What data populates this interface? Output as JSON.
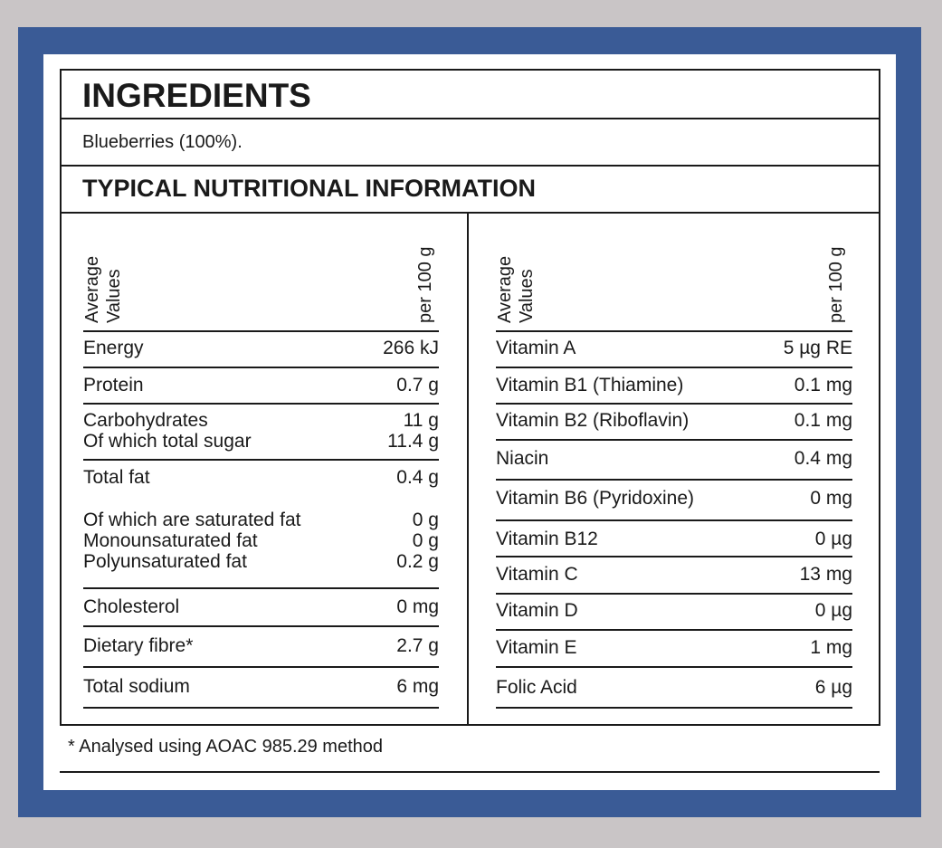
{
  "ingredients": {
    "title": "INGREDIENTS",
    "text": "Blueberries (100%)."
  },
  "nutrition": {
    "title": "TYPICAL NUTRITIONAL INFORMATION",
    "columns": [
      {
        "header": {
          "label": "Average Values",
          "unit": "per 100 g"
        },
        "rows": [
          {
            "labels": [
              "Energy"
            ],
            "values": [
              "266 kJ"
            ]
          },
          {
            "labels": [
              "Protein"
            ],
            "values": [
              "0.7 g"
            ]
          },
          {
            "labels": [
              "Carbohydrates",
              "Of which total sugar"
            ],
            "values": [
              "11 g",
              "11.4 g"
            ]
          },
          {
            "labels": [
              "Total fat"
            ],
            "values": [
              "0.4 g"
            ]
          },
          {
            "labels": [
              "Of which are saturated fat",
              "Monounsaturated fat",
              "Polyunsaturated fat"
            ],
            "values": [
              "0 g",
              "0 g",
              "0.2 g"
            ]
          },
          {
            "labels": [
              "Cholesterol"
            ],
            "values": [
              "0 mg"
            ]
          },
          {
            "labels": [
              "Dietary fibre*"
            ],
            "values": [
              "2.7 g"
            ]
          },
          {
            "labels": [
              "Total sodium"
            ],
            "values": [
              "6 mg"
            ]
          }
        ]
      },
      {
        "header": {
          "label": "Average Values",
          "unit": "per 100 g"
        },
        "rows": [
          {
            "labels": [
              "Vitamin A"
            ],
            "values": [
              "5 µg RE"
            ]
          },
          {
            "labels": [
              "Vitamin B1 (Thiamine)"
            ],
            "values": [
              "0.1 mg"
            ]
          },
          {
            "labels": [
              "Vitamin B2 (Riboflavin)"
            ],
            "values": [
              "0.1 mg"
            ]
          },
          {
            "labels": [
              "Niacin"
            ],
            "values": [
              "0.4 mg"
            ]
          },
          {
            "labels": [
              "Vitamin B6 (Pyridoxine)"
            ],
            "values": [
              "0 mg"
            ]
          },
          {
            "labels": [
              "Vitamin B12"
            ],
            "values": [
              "0 µg"
            ]
          },
          {
            "labels": [
              "Vitamin C"
            ],
            "values": [
              "13 mg"
            ]
          },
          {
            "labels": [
              "Vitamin D"
            ],
            "values": [
              "0 µg"
            ]
          },
          {
            "labels": [
              "Vitamin E"
            ],
            "values": [
              "1 mg"
            ]
          },
          {
            "labels": [
              "Folic Acid"
            ],
            "values": [
              "6 µg"
            ]
          }
        ]
      }
    ]
  },
  "footnote": "* Analysed using AOAC 985.29 method"
}
